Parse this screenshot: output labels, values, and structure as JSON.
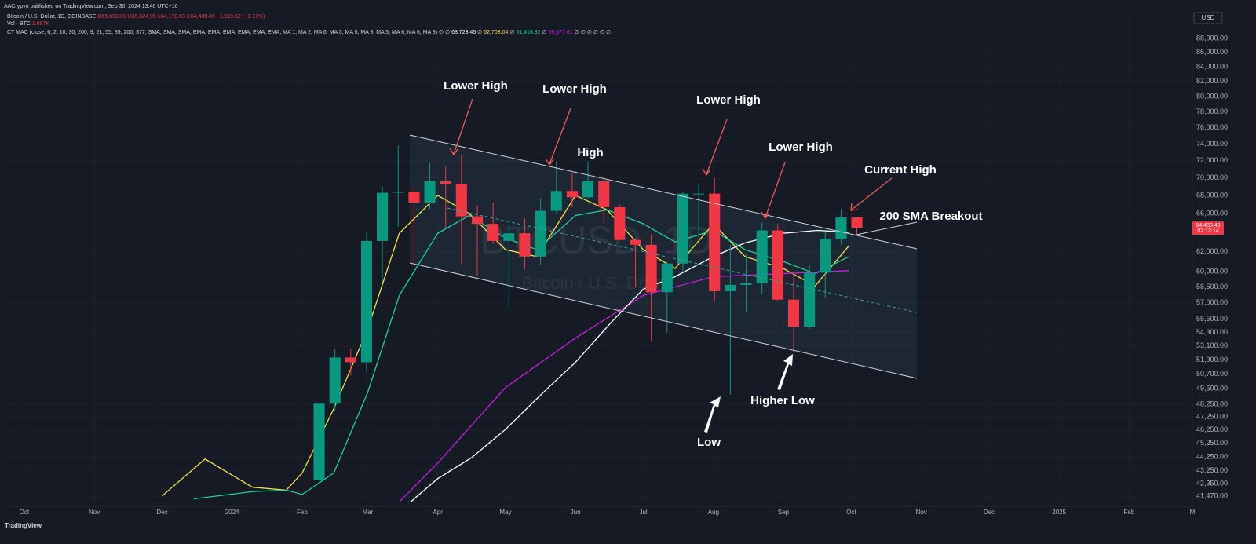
{
  "header": {
    "publisher": "AACrypyo published on TradingView.com, Sep 30, 2024 13:46 UTC+10",
    "symbol": "Bitcoin / U.S. Dollar, 1D, COINBASE",
    "ohlc": "O65,600.01 H65,624.95 L64,178.03 C64,480.49 −1,119.52 (−1.71%)",
    "volume_title": "Vol · BTC",
    "volume_value": "1.887K",
    "indicator": "CT MAC (close, 6, 2, 10, 30, 200, 9, 21, 55, 89, 200, 377, SMA, SMA, SMA, EMA, EMA, EMA, EMA, EMA, EMA, MA 1, MA 2, MA 6, MA 3, MA 5, MA 3, MA 5, MA 6, MA 6, MA 8) ∅ ∅",
    "indicator_values": [
      "63,723.45",
      "62,708.04",
      "61,416.92",
      "59,677.61"
    ],
    "indicator_tail": "∅ ∅ ∅ ∅ ∅ ∅",
    "currency": "USD",
    "footer": "TradingView"
  },
  "watermark": {
    "symbol": "BTCUSD, 1D",
    "name": "Bitcoin / U.S. Dollar"
  },
  "chart_data": {
    "type": "candlestick",
    "log_scale": true,
    "grid": true,
    "up_color": "#089981",
    "down_color": "#f23645",
    "xlim": [
      "2023-09-22",
      "2025-03-01"
    ],
    "xticks": [
      {
        "value": "2023-10-01",
        "label": "Oct"
      },
      {
        "value": "2023-11-01",
        "label": "Nov"
      },
      {
        "value": "2023-12-01",
        "label": "Dec"
      },
      {
        "value": "2024-01-01",
        "label": "2024"
      },
      {
        "value": "2024-02-01",
        "label": "Feb"
      },
      {
        "value": "2024-03-01",
        "label": "Mar"
      },
      {
        "value": "2024-04-01",
        "label": "Apr"
      },
      {
        "value": "2024-05-01",
        "label": "May"
      },
      {
        "value": "2024-06-01",
        "label": "Jun"
      },
      {
        "value": "2024-07-01",
        "label": "Jul"
      },
      {
        "value": "2024-08-01",
        "label": "Aug"
      },
      {
        "value": "2024-09-01",
        "label": "Sep"
      },
      {
        "value": "2024-10-01",
        "label": "Oct"
      },
      {
        "value": "2024-11-01",
        "label": "Nov"
      },
      {
        "value": "2024-12-01",
        "label": "Dec"
      },
      {
        "value": "2025-01-01",
        "label": "2025"
      },
      {
        "value": "2025-02-01",
        "label": "Feb"
      },
      {
        "value": "2025-03-01",
        "label": "M"
      }
    ],
    "ylim": [
      40800,
      91950
    ],
    "yticks": [
      {
        "value": 88000,
        "label": "88,000.00"
      },
      {
        "value": 86000,
        "label": "86,000.00"
      },
      {
        "value": 84000,
        "label": "84,000.00"
      },
      {
        "value": 82000,
        "label": "82,000.00"
      },
      {
        "value": 80000,
        "label": "80,000.00"
      },
      {
        "value": 78000,
        "label": "78,000.00"
      },
      {
        "value": 76000,
        "label": "76,000.00"
      },
      {
        "value": 74000,
        "label": "74,000.00"
      },
      {
        "value": 72000,
        "label": "72,000.00"
      },
      {
        "value": 70000,
        "label": "70,000.00"
      },
      {
        "value": 68000,
        "label": "68,000.00"
      },
      {
        "value": 66000,
        "label": "66,000.00"
      },
      {
        "value": 62000,
        "label": "62,000.00"
      },
      {
        "value": 60000,
        "label": "60,000.00"
      },
      {
        "value": 58500,
        "label": "58,500.00"
      },
      {
        "value": 57000,
        "label": "57,000.00"
      },
      {
        "value": 55500,
        "label": "55,500.00"
      },
      {
        "value": 54300,
        "label": "54,300.00"
      },
      {
        "value": 53100,
        "label": "53,100.00"
      },
      {
        "value": 51900,
        "label": "51,900.00"
      },
      {
        "value": 50700,
        "label": "50,700.00"
      },
      {
        "value": 49500,
        "label": "49,500.00"
      },
      {
        "value": 48250,
        "label": "48,250.00"
      },
      {
        "value": 47250,
        "label": "47,250.00"
      },
      {
        "value": 46250,
        "label": "46,250.00"
      },
      {
        "value": 45250,
        "label": "45,250.00"
      },
      {
        "value": 44250,
        "label": "44,250.00"
      },
      {
        "value": 43250,
        "label": "43,250.00"
      },
      {
        "value": 42350,
        "label": "42,350.00"
      },
      {
        "value": 41470,
        "label": "41,470.00"
      }
    ],
    "x": [
      "2024-02-05",
      "2024-02-12",
      "2024-02-19",
      "2024-02-26",
      "2024-03-04",
      "2024-03-11",
      "2024-03-18",
      "2024-03-25",
      "2024-04-01",
      "2024-04-08",
      "2024-04-15",
      "2024-04-22",
      "2024-04-29",
      "2024-05-06",
      "2024-05-13",
      "2024-05-20",
      "2024-05-27",
      "2024-06-03",
      "2024-06-10",
      "2024-06-17",
      "2024-06-24",
      "2024-07-01",
      "2024-07-08",
      "2024-07-15",
      "2024-07-22",
      "2024-07-29",
      "2024-08-05",
      "2024-08-12",
      "2024-08-19",
      "2024-08-26",
      "2024-09-02",
      "2024-09-09",
      "2024-09-16",
      "2024-09-23",
      "2024-09-30"
    ],
    "open": [
      42600,
      48300,
      52100,
      51700,
      63100,
      68300,
      68400,
      67200,
      69600,
      69300,
      65700,
      64900,
      63100,
      63900,
      61500,
      66300,
      68500,
      67800,
      69600,
      66700,
      63200,
      62700,
      58000,
      60800,
      68200,
      68200,
      58100,
      58700,
      58900,
      64200,
      57300,
      54800,
      59900,
      63300,
      65600
    ],
    "high": [
      48500,
      52800,
      52900,
      64000,
      69000,
      73800,
      68900,
      71700,
      71300,
      72700,
      66900,
      67200,
      64700,
      65500,
      67700,
      71900,
      70600,
      71900,
      70200,
      67000,
      63400,
      63800,
      61000,
      68400,
      69400,
      70000,
      62700,
      61800,
      65000,
      64900,
      59800,
      60700,
      64100,
      66500,
      65600
    ],
    "low": [
      42300,
      47700,
      50600,
      50900,
      59000,
      64600,
      60800,
      66500,
      64500,
      60700,
      59600,
      62800,
      56500,
      60200,
      60700,
      66100,
      66700,
      67700,
      65000,
      63200,
      58500,
      53500,
      54300,
      59900,
      63400,
      57100,
      49000,
      56100,
      57800,
      57200,
      52500,
      54600,
      57500,
      62700,
      63800
    ],
    "close": [
      48300,
      52100,
      51700,
      63100,
      68300,
      68400,
      67200,
      69600,
      69300,
      65700,
      64900,
      63100,
      63900,
      61500,
      66300,
      68500,
      67800,
      69600,
      66700,
      63200,
      62700,
      58000,
      60800,
      68200,
      68200,
      58100,
      58700,
      58900,
      64200,
      57300,
      54800,
      59900,
      63300,
      65600,
      64480
    ],
    "price_label": "64,480.49",
    "countdown": "02:13:14",
    "moving_averages": [
      {
        "color": "#f2e14a",
        "x": [
          "2023-12-01",
          "2023-12-20",
          "2024-01-10",
          "2024-01-25",
          "2024-02-01",
          "2024-02-15",
          "2024-03-01",
          "2024-03-15",
          "2024-04-01",
          "2024-04-15",
          "2024-05-01",
          "2024-05-15",
          "2024-06-01",
          "2024-06-15",
          "2024-07-01",
          "2024-07-15",
          "2024-08-01",
          "2024-08-15",
          "2024-09-01",
          "2024-09-15",
          "2024-09-30"
        ],
        "values": [
          41500,
          44100,
          42100,
          41900,
          43100,
          47900,
          54600,
          63900,
          68000,
          66000,
          62200,
          61500,
          68000,
          66400,
          62200,
          60300,
          64900,
          61500,
          60300,
          58600,
          62600
        ]
      },
      {
        "color": "#1ed39a",
        "x": [
          "2023-12-15",
          "2024-01-10",
          "2024-01-25",
          "2024-02-01",
          "2024-02-15",
          "2024-03-01",
          "2024-03-15",
          "2024-04-01",
          "2024-04-15",
          "2024-05-01",
          "2024-05-15",
          "2024-06-01",
          "2024-06-15",
          "2024-07-01",
          "2024-07-15",
          "2024-08-01",
          "2024-08-15",
          "2024-09-01",
          "2024-09-15",
          "2024-09-30"
        ],
        "values": [
          41300,
          41800,
          41900,
          41600,
          43100,
          49200,
          57700,
          63900,
          65800,
          63400,
          62200,
          65800,
          66400,
          64900,
          63000,
          64200,
          62200,
          61000,
          59800,
          61500
        ]
      },
      {
        "color": "#c81ee0",
        "x": [
          "2024-03-15",
          "2024-04-01",
          "2024-05-01",
          "2024-06-01",
          "2024-07-01",
          "2024-08-01",
          "2024-09-01",
          "2024-09-30"
        ],
        "values": [
          41100,
          43800,
          49600,
          53800,
          57700,
          59500,
          59800,
          60100
        ]
      },
      {
        "color": "#ffffff",
        "x": [
          "2024-03-20",
          "2024-04-01",
          "2024-04-16",
          "2024-05-01",
          "2024-05-20",
          "2024-06-01",
          "2024-06-17",
          "2024-07-01",
          "2024-07-15",
          "2024-08-01",
          "2024-08-15",
          "2024-09-01",
          "2024-09-16",
          "2024-09-30"
        ],
        "values": [
          41100,
          42700,
          44200,
          46300,
          49600,
          51700,
          55250,
          58300,
          59500,
          61500,
          62900,
          63900,
          64200,
          64000
        ]
      }
    ],
    "annotations": [
      "Lower High",
      "Lower High",
      "High",
      "Lower High",
      "Lower High",
      "Current High",
      "200 SMA Breakout",
      "Higher Low",
      "Low"
    ]
  }
}
